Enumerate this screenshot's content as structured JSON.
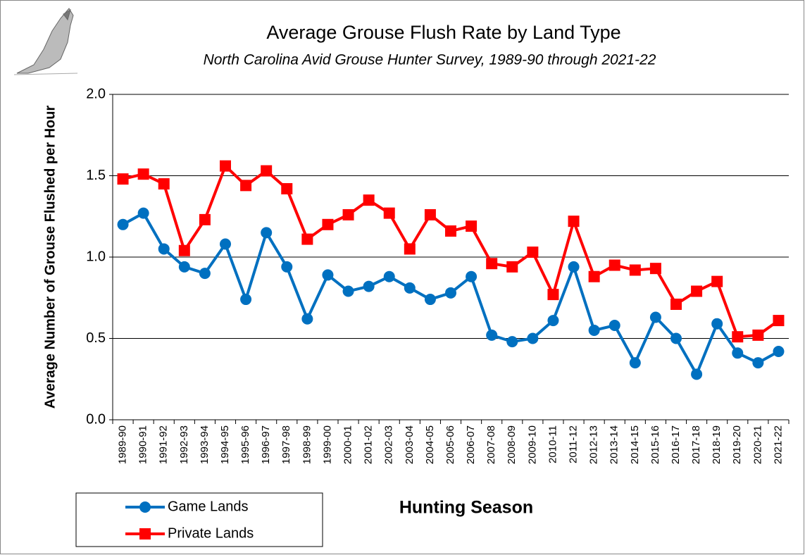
{
  "chart_data": {
    "type": "line",
    "title": "Average Grouse Flush Rate by Land Type",
    "subtitle": "North Carolina Avid Grouse Hunter Survey, 1989-90 through 2021-22",
    "x_label": "Hunting Season",
    "y_label": "Average Number of Grouse Flushed per Hour",
    "categories": [
      "1989-90",
      "1990-91",
      "1991-92",
      "1992-93",
      "1993-94",
      "1994-95",
      "1995-96",
      "1996-97",
      "1997-98",
      "1998-99",
      "1999-00",
      "2000-01",
      "2001-02",
      "2002-03",
      "2003-04",
      "2004-05",
      "2005-06",
      "2006-07",
      "2007-08",
      "2008-09",
      "2009-10",
      "2010-11",
      "2011-12",
      "2012-13",
      "2013-14",
      "2014-15",
      "2015-16",
      "2016-17",
      "2017-18",
      "2018-19",
      "2019-20",
      "2020-21",
      "2021-22"
    ],
    "series": [
      {
        "name": "Game Lands",
        "color": "#0070c0",
        "marker": "circle",
        "values": [
          1.2,
          1.27,
          1.05,
          0.94,
          0.9,
          1.08,
          0.74,
          1.15,
          0.94,
          0.62,
          0.89,
          0.79,
          0.82,
          0.88,
          0.81,
          0.74,
          0.78,
          0.88,
          0.52,
          0.48,
          0.5,
          0.61,
          0.94,
          0.55,
          0.58,
          0.35,
          0.63,
          0.5,
          0.28,
          0.59,
          0.41,
          0.35,
          0.42
        ]
      },
      {
        "name": "Private Lands",
        "color": "#ff0000",
        "marker": "square",
        "values": [
          1.48,
          1.51,
          1.45,
          1.04,
          1.23,
          1.56,
          1.44,
          1.53,
          1.42,
          1.11,
          1.2,
          1.26,
          1.35,
          1.27,
          1.05,
          1.26,
          1.16,
          1.19,
          0.96,
          0.94,
          1.03,
          0.77,
          1.22,
          0.88,
          0.95,
          0.92,
          0.93,
          0.71,
          0.79,
          0.85,
          0.51,
          0.52,
          0.61
        ]
      }
    ],
    "ylim": [
      0,
      2
    ],
    "yticks": [
      {
        "value": 0,
        "label": "0.0"
      },
      {
        "value": 0.5,
        "label": "0.5"
      },
      {
        "value": 1,
        "label": "1.0"
      },
      {
        "value": 1.5,
        "label": "1.5"
      },
      {
        "value": 2,
        "label": "2.0"
      }
    ],
    "grid": true,
    "legend": "bottom-left"
  }
}
